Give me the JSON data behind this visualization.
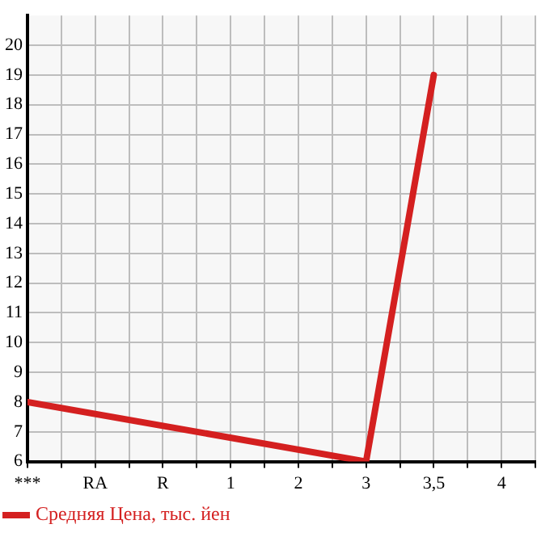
{
  "chart_data": {
    "type": "line",
    "categories": [
      "***",
      "RA",
      "R",
      "1",
      "2",
      "3",
      "3,5",
      "4"
    ],
    "series": [
      {
        "name": "Средняя Цена, тыс. йен",
        "color": "#d42020",
        "values": [
          8,
          null,
          null,
          null,
          null,
          6,
          19,
          null
        ]
      }
    ],
    "ylim": [
      6,
      21
    ],
    "yticks": [
      6,
      7,
      8,
      9,
      10,
      11,
      12,
      13,
      14,
      15,
      16,
      17,
      18,
      19,
      20
    ],
    "grid": true,
    "legend": "bottom left",
    "marker": "none"
  }
}
